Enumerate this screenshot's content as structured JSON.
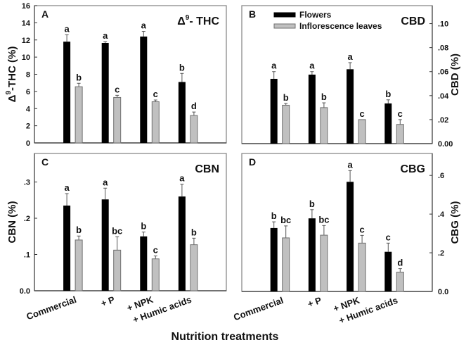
{
  "figure": {
    "x_axis_title": "Nutrition treatments",
    "legend": {
      "placement": "top-left of panel B",
      "items": [
        {
          "label": "Flowers",
          "color": "#000000"
        },
        {
          "label": "Inflorescence leaves",
          "color": "#c0c0c0"
        }
      ]
    },
    "colors": {
      "flowers": "#000000",
      "leaves": "#c0c0c0",
      "leaves_edge": "#6f6f6f",
      "frame": "#8a8a8a",
      "text": "#111111"
    }
  },
  "chart_data": [
    {
      "type": "bar",
      "panel": "A",
      "title": "Δ⁹- THC",
      "title_main": "Δ",
      "title_sup": "9",
      "title_rest": "- THC",
      "ylabel": "Δ⁹-THC (%)",
      "ylabel_main": "Δ",
      "ylabel_sup": "9",
      "ylabel_rest": "-THC (%)",
      "yaxis_side": "left",
      "ylim": [
        0,
        16
      ],
      "yticks": [
        0,
        2,
        4,
        6,
        8,
        10,
        12,
        14,
        16
      ],
      "ytick_labels": [
        "0",
        "2",
        "4",
        "6",
        "8",
        "10",
        "12",
        "14",
        "16"
      ],
      "categories": [
        "Commercial",
        "+ P",
        "+ NPK",
        "+ Humic acids"
      ],
      "show_category_labels": false,
      "series": [
        {
          "name": "Flowers",
          "values": [
            11.8,
            11.65,
            12.4,
            7.1
          ],
          "errors": [
            0.8,
            0.15,
            0.6,
            1.0
          ],
          "letters": [
            "a",
            "a",
            "a",
            "b"
          ]
        },
        {
          "name": "Inflorescence leaves",
          "values": [
            6.55,
            5.3,
            4.8,
            3.2
          ],
          "errors": [
            0.4,
            0.25,
            0.2,
            0.4
          ],
          "letters": [
            "b",
            "c",
            "c",
            "d"
          ]
        }
      ],
      "grid": false
    },
    {
      "type": "bar",
      "panel": "B",
      "title": "CBD",
      "ylabel": "CBD (%)",
      "yaxis_side": "right",
      "ylim": [
        0,
        0.115
      ],
      "yticks": [
        0,
        0.02,
        0.04,
        0.06,
        0.08,
        0.1
      ],
      "ytick_labels": [
        "0.00",
        ".02",
        ".04",
        ".06",
        ".08",
        ".10"
      ],
      "categories": [
        "Commercial",
        "+ P",
        "+ NPK",
        "+ Humic acids"
      ],
      "show_category_labels": false,
      "series": [
        {
          "name": "Flowers",
          "values": [
            0.054,
            0.0575,
            0.062,
            0.0335
          ],
          "errors": [
            0.006,
            0.0025,
            0.0055,
            0.003
          ],
          "letters": [
            "a",
            "a",
            "a",
            "b"
          ]
        },
        {
          "name": "Inflorescence leaves",
          "values": [
            0.032,
            0.03,
            0.02,
            0.016
          ],
          "errors": [
            0.0015,
            0.004,
            0.0,
            0.004
          ],
          "letters": [
            "b",
            "b",
            "c",
            "c"
          ]
        }
      ],
      "grid": false
    },
    {
      "type": "bar",
      "panel": "C",
      "title": "CBN",
      "ylabel": "CBN (%)",
      "yaxis_side": "left",
      "ylim": [
        0,
        0.3787
      ],
      "yticks": [
        0,
        0.1,
        0.2,
        0.3
      ],
      "ytick_labels": [
        "0.0",
        ".1",
        ".2",
        ".3"
      ],
      "categories": [
        "Commercial",
        "+ P",
        "+ NPK",
        "+ Humic acids"
      ],
      "show_category_labels": true,
      "series": [
        {
          "name": "Flowers",
          "values": [
            0.235,
            0.252,
            0.15,
            0.26
          ],
          "errors": [
            0.033,
            0.031,
            0.012,
            0.034
          ],
          "letters": [
            "a",
            "a",
            "b",
            "a"
          ]
        },
        {
          "name": "Inflorescence leaves",
          "values": [
            0.14,
            0.112,
            0.088,
            0.127
          ],
          "errors": [
            0.011,
            0.037,
            0.008,
            0.018
          ],
          "letters": [
            "b",
            "bc",
            "c",
            "b"
          ]
        }
      ],
      "grid": false
    },
    {
      "type": "bar",
      "panel": "D",
      "title": "CBG",
      "ylabel": "CBG (%)",
      "yaxis_side": "right",
      "ylim": [
        0,
        0.7135
      ],
      "yticks": [
        0,
        0.2,
        0.4,
        0.6
      ],
      "ytick_labels": [
        "0.0",
        ".2",
        ".4",
        ".6"
      ],
      "categories": [
        "Commercial",
        "+ P",
        "+ NPK",
        "+ Humic acids"
      ],
      "show_category_labels": true,
      "series": [
        {
          "name": "Flowers",
          "values": [
            0.328,
            0.378,
            0.567,
            0.205
          ],
          "errors": [
            0.032,
            0.045,
            0.058,
            0.045
          ],
          "letters": [
            "b",
            "b",
            "a",
            "c"
          ]
        },
        {
          "name": "Inflorescence leaves",
          "values": [
            0.277,
            0.291,
            0.25,
            0.1
          ],
          "errors": [
            0.062,
            0.05,
            0.04,
            0.018
          ],
          "letters": [
            "bc",
            "bc",
            "c",
            "d"
          ]
        }
      ],
      "grid": false
    }
  ]
}
